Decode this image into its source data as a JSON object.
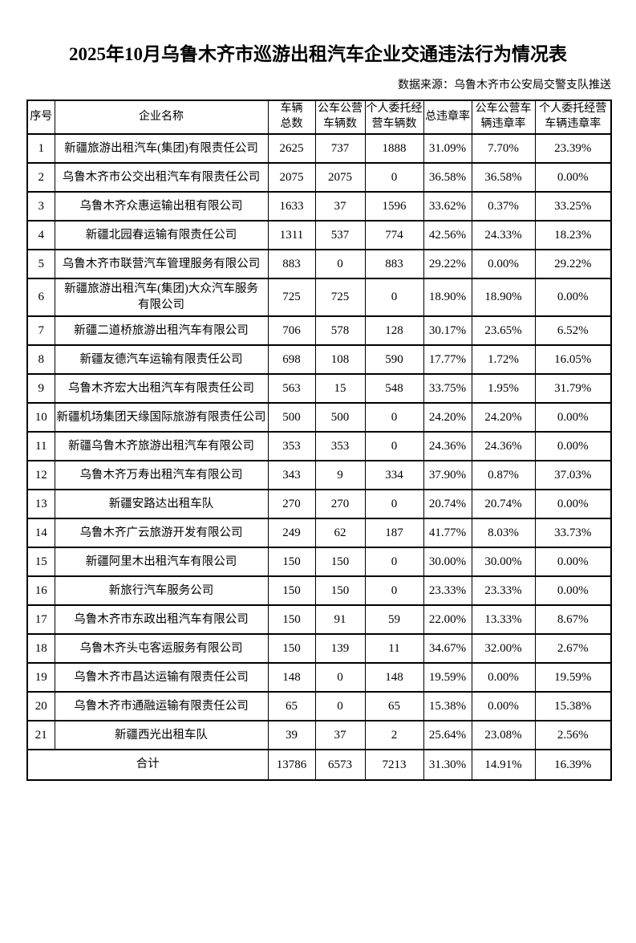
{
  "page": {
    "title": "2025年10月乌鲁木齐市巡游出租汽车企业交通违法行为情况表",
    "source_note": "数据来源：乌鲁木齐市公安局交警支队推送"
  },
  "table": {
    "headers": {
      "serial": "序号",
      "company": "企业名称",
      "total_vehicles": "车辆\n总数",
      "public_vehicles": "公车公营\n车辆数",
      "personal_vehicles": "个人委托经\n营车辆数",
      "total_rate": "总违章率",
      "public_rate": "公车公营车\n辆违章率",
      "personal_rate": "个人委托经营\n车辆违章率"
    },
    "rows": [
      {
        "no": "1",
        "name": "新疆旅游出租汽车(集团)有限责任公司",
        "total_vehicles": "2625",
        "public_vehicles": "737",
        "personal_vehicles": "1888",
        "total_rate": "31.09%",
        "public_rate": "7.70%",
        "personal_rate": "23.39%"
      },
      {
        "no": "2",
        "name": "乌鲁木齐市公交出租汽车有限责任公司",
        "total_vehicles": "2075",
        "public_vehicles": "2075",
        "personal_vehicles": "0",
        "total_rate": "36.58%",
        "public_rate": "36.58%",
        "personal_rate": "0.00%"
      },
      {
        "no": "3",
        "name": "乌鲁木齐众惠运输出租有限公司",
        "total_vehicles": "1633",
        "public_vehicles": "37",
        "personal_vehicles": "1596",
        "total_rate": "33.62%",
        "public_rate": "0.37%",
        "personal_rate": "33.25%"
      },
      {
        "no": "4",
        "name": "新疆北园春运输有限责任公司",
        "total_vehicles": "1311",
        "public_vehicles": "537",
        "personal_vehicles": "774",
        "total_rate": "42.56%",
        "public_rate": "24.33%",
        "personal_rate": "18.23%"
      },
      {
        "no": "5",
        "name": "乌鲁木齐市联营汽车管理服务有限公司",
        "total_vehicles": "883",
        "public_vehicles": "0",
        "personal_vehicles": "883",
        "total_rate": "29.22%",
        "public_rate": "0.00%",
        "personal_rate": "29.22%"
      },
      {
        "no": "6",
        "name": "新疆旅游出租汽车(集团)大众汽车服务\n有限公司",
        "total_vehicles": "725",
        "public_vehicles": "725",
        "personal_vehicles": "0",
        "total_rate": "18.90%",
        "public_rate": "18.90%",
        "personal_rate": "0.00%"
      },
      {
        "no": "7",
        "name": "新疆二道桥旅游出租汽车有限公司",
        "total_vehicles": "706",
        "public_vehicles": "578",
        "personal_vehicles": "128",
        "total_rate": "30.17%",
        "public_rate": "23.65%",
        "personal_rate": "6.52%"
      },
      {
        "no": "8",
        "name": "新疆友德汽车运输有限责任公司",
        "total_vehicles": "698",
        "public_vehicles": "108",
        "personal_vehicles": "590",
        "total_rate": "17.77%",
        "public_rate": "1.72%",
        "personal_rate": "16.05%"
      },
      {
        "no": "9",
        "name": "乌鲁木齐宏大出租汽车有限责任公司",
        "total_vehicles": "563",
        "public_vehicles": "15",
        "personal_vehicles": "548",
        "total_rate": "33.75%",
        "public_rate": "1.95%",
        "personal_rate": "31.79%"
      },
      {
        "no": "10",
        "name": "新疆机场集团天缘国际旅游有限责任公司",
        "total_vehicles": "500",
        "public_vehicles": "500",
        "personal_vehicles": "0",
        "total_rate": "24.20%",
        "public_rate": "24.20%",
        "personal_rate": "0.00%"
      },
      {
        "no": "11",
        "name": "新疆乌鲁木齐旅游出租汽车有限公司",
        "total_vehicles": "353",
        "public_vehicles": "353",
        "personal_vehicles": "0",
        "total_rate": "24.36%",
        "public_rate": "24.36%",
        "personal_rate": "0.00%"
      },
      {
        "no": "12",
        "name": "乌鲁木齐万寿出租汽车有限公司",
        "total_vehicles": "343",
        "public_vehicles": "9",
        "personal_vehicles": "334",
        "total_rate": "37.90%",
        "public_rate": "0.87%",
        "personal_rate": "37.03%"
      },
      {
        "no": "13",
        "name": "新疆安路达出租车队",
        "total_vehicles": "270",
        "public_vehicles": "270",
        "personal_vehicles": "0",
        "total_rate": "20.74%",
        "public_rate": "20.74%",
        "personal_rate": "0.00%"
      },
      {
        "no": "14",
        "name": "乌鲁木齐广云旅游开发有限公司",
        "total_vehicles": "249",
        "public_vehicles": "62",
        "personal_vehicles": "187",
        "total_rate": "41.77%",
        "public_rate": "8.03%",
        "personal_rate": "33.73%"
      },
      {
        "no": "15",
        "name": "新疆阿里木出租汽车有限公司",
        "total_vehicles": "150",
        "public_vehicles": "150",
        "personal_vehicles": "0",
        "total_rate": "30.00%",
        "public_rate": "30.00%",
        "personal_rate": "0.00%"
      },
      {
        "no": "16",
        "name": "新旅行汽车服务公司",
        "total_vehicles": "150",
        "public_vehicles": "150",
        "personal_vehicles": "0",
        "total_rate": "23.33%",
        "public_rate": "23.33%",
        "personal_rate": "0.00%"
      },
      {
        "no": "17",
        "name": "乌鲁木齐市东政出租汽车有限公司",
        "total_vehicles": "150",
        "public_vehicles": "91",
        "personal_vehicles": "59",
        "total_rate": "22.00%",
        "public_rate": "13.33%",
        "personal_rate": "8.67%"
      },
      {
        "no": "18",
        "name": "乌鲁木齐头屯客运服务有限公司",
        "total_vehicles": "150",
        "public_vehicles": "139",
        "personal_vehicles": "11",
        "total_rate": "34.67%",
        "public_rate": "32.00%",
        "personal_rate": "2.67%"
      },
      {
        "no": "19",
        "name": "乌鲁木齐市昌达运输有限责任公司",
        "total_vehicles": "148",
        "public_vehicles": "0",
        "personal_vehicles": "148",
        "total_rate": "19.59%",
        "public_rate": "0.00%",
        "personal_rate": "19.59%"
      },
      {
        "no": "20",
        "name": "乌鲁木齐市通融运输有限责任公司",
        "total_vehicles": "65",
        "public_vehicles": "0",
        "personal_vehicles": "65",
        "total_rate": "15.38%",
        "public_rate": "0.00%",
        "personal_rate": "15.38%"
      },
      {
        "no": "21",
        "name": "新疆西光出租车队",
        "total_vehicles": "39",
        "public_vehicles": "37",
        "personal_vehicles": "2",
        "total_rate": "25.64%",
        "public_rate": "23.08%",
        "personal_rate": "2.56%"
      }
    ],
    "total_row": {
      "label": "合计",
      "total_vehicles": "13786",
      "public_vehicles": "6573",
      "personal_vehicles": "7213",
      "total_rate": "31.30%",
      "public_rate": "14.91%",
      "personal_rate": "16.39%"
    }
  }
}
